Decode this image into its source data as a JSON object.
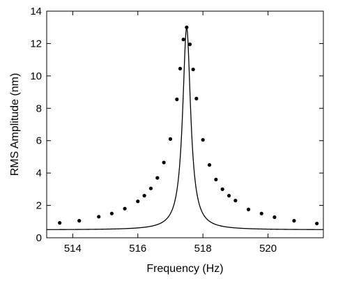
{
  "chart_data": {
    "type": "line",
    "title": "",
    "xlabel": "Frequency (Hz)",
    "ylabel": "RMS Amplitude (nm)",
    "xlim": [
      513.2,
      521.7
    ],
    "ylim": [
      0,
      14
    ],
    "xticks": [
      514,
      516,
      518,
      520
    ],
    "yticks": [
      0,
      2,
      4,
      6,
      8,
      10,
      12,
      14
    ],
    "grid": false,
    "legend": "none",
    "series": [
      {
        "markers": true,
        "color": "#000000",
        "x": [
          513.6,
          514.2,
          514.8,
          515.2,
          515.6,
          516.0,
          516.2,
          516.4,
          516.6,
          516.8,
          517.0,
          517.2,
          517.3,
          517.4,
          517.5,
          517.6,
          517.7,
          517.8,
          518.0,
          518.2,
          518.4,
          518.6,
          518.8,
          519.0,
          519.4,
          519.8,
          520.2,
          520.8,
          521.5
        ],
        "y": [
          0.92,
          1.05,
          1.3,
          1.5,
          1.8,
          2.25,
          2.6,
          3.05,
          3.7,
          4.65,
          6.1,
          8.55,
          10.45,
          12.25,
          13.0,
          11.95,
          10.4,
          8.6,
          6.05,
          4.5,
          3.6,
          3.0,
          2.6,
          2.3,
          1.75,
          1.5,
          1.27,
          1.05,
          0.88
        ]
      }
    ]
  }
}
